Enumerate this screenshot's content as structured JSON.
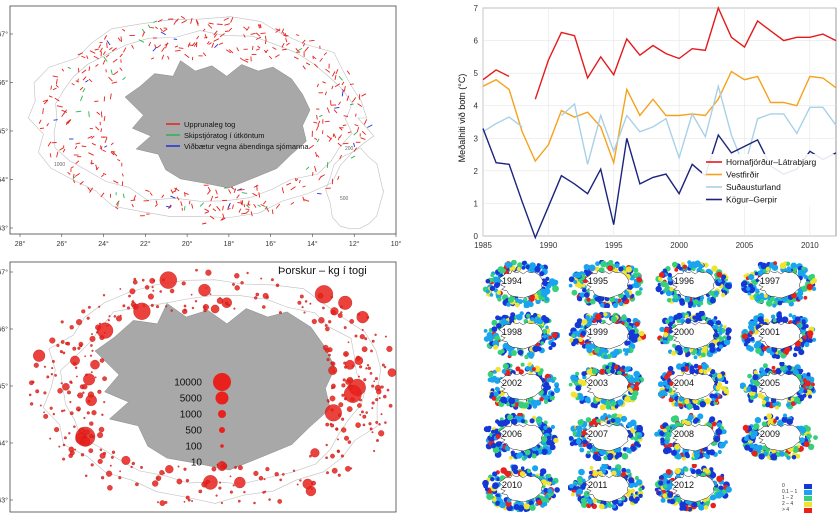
{
  "chart_data": [
    {
      "type": "map",
      "panel": "top-left",
      "x_ticks": [
        "28°",
        "26°",
        "24°",
        "22°",
        "20°",
        "18°",
        "16°",
        "14°",
        "12°",
        "10°"
      ],
      "y_ticks": [
        "67°",
        "66°",
        "65°",
        "64°",
        "63°"
      ],
      "legend": [
        {
          "label": "Upprunaleg tog",
          "color": "#e8211c"
        },
        {
          "label": "Skipstjóratog í útköntum",
          "color": "#2db34a"
        },
        {
          "label": "Viðbætur vegna ábendinga sjómanna",
          "color": "#1f2fd4"
        }
      ],
      "contour_labels": [
        "1000",
        "200",
        "500"
      ],
      "colors": {
        "land": "#a8a8a8",
        "contour": "#bfbfbf"
      }
    },
    {
      "type": "bubble-map",
      "panel": "bottom-left",
      "title": "Þorskur – kg í togi",
      "y_ticks": [
        "67°",
        "66°",
        "65°",
        "64°",
        "63°"
      ],
      "size_legend": [
        "10000",
        "5000",
        "1000",
        "500",
        "100",
        "10"
      ],
      "colors": {
        "bubble": "#e8211c",
        "land": "#a8a8a8"
      }
    },
    {
      "type": "line",
      "panel": "top-right",
      "ylabel": "Meðalhiti við botn (°C)",
      "xlim": [
        1985,
        2012
      ],
      "ylim": [
        0,
        7
      ],
      "x_ticks": [
        "1985",
        "1990",
        "1995",
        "2000",
        "2005",
        "2010"
      ],
      "y_ticks": [
        "0",
        "1",
        "2",
        "3",
        "4",
        "5",
        "6",
        "7"
      ],
      "x": [
        1985,
        1986,
        1987,
        1988,
        1989,
        1990,
        1991,
        1992,
        1993,
        1994,
        1995,
        1996,
        1997,
        1998,
        1999,
        2000,
        2001,
        2002,
        2003,
        2004,
        2005,
        2006,
        2007,
        2008,
        2009,
        2010,
        2011,
        2012
      ],
      "series": [
        {
          "name": "Hornafjörður–Látrabjarg",
          "color": "#e41a1c",
          "values": [
            4.8,
            5.1,
            4.9,
            null,
            4.2,
            5.4,
            6.25,
            6.15,
            4.85,
            5.5,
            4.95,
            6.05,
            5.55,
            5.85,
            5.6,
            5.45,
            5.75,
            5.7,
            7.0,
            6.1,
            5.8,
            6.6,
            6.3,
            6.0,
            6.1,
            6.1,
            6.2,
            6.0
          ]
        },
        {
          "name": "Vestfirðir",
          "color": "#f5a21b",
          "values": [
            4.6,
            4.8,
            4.5,
            3.2,
            2.3,
            2.8,
            3.85,
            3.65,
            3.8,
            3.35,
            2.25,
            4.5,
            3.7,
            4.2,
            3.7,
            3.7,
            3.75,
            3.7,
            4.2,
            5.05,
            4.8,
            4.9,
            4.1,
            4.1,
            4.0,
            4.9,
            4.85,
            4.55
          ]
        },
        {
          "name": "Suðausturland",
          "color": "#a8d1e8",
          "values": [
            3.2,
            3.45,
            3.65,
            3.35,
            null,
            null,
            3.7,
            4.05,
            2.2,
            3.7,
            2.6,
            3.7,
            3.2,
            3.35,
            3.6,
            2.4,
            3.75,
            3.05,
            4.6,
            3.1,
            2.1,
            3.6,
            3.75,
            3.75,
            3.15,
            3.95,
            3.95,
            3.4
          ]
        },
        {
          "name": "Kögur–Gerpir",
          "color": "#1a237e",
          "values": [
            3.3,
            2.25,
            2.2,
            1.05,
            -0.05,
            0.9,
            1.85,
            1.6,
            1.3,
            2.05,
            0.35,
            3.0,
            1.6,
            1.8,
            1.9,
            1.3,
            2.2,
            1.85,
            3.1,
            2.55,
            2.75,
            2.95,
            2.15,
            1.9,
            2.05,
            2.6,
            2.35,
            2.55
          ]
        }
      ]
    },
    {
      "type": "heatmap",
      "panel": "bottom-right",
      "years": [
        "1994",
        "1995",
        "1996",
        "1997",
        "1998",
        "1999",
        "2000",
        "2001",
        "2002",
        "2003",
        "2004",
        "2005",
        "2006",
        "2007",
        "2008",
        "2009",
        "2010",
        "2011",
        "2012"
      ],
      "legend": [
        "0",
        "0.1 – 1",
        "1 – 2",
        "2 – 4",
        "> 4"
      ],
      "legend_colors": [
        "#1537d6",
        "#19a4ee",
        "#36d07a",
        "#f2e32e",
        "#e8211c"
      ]
    }
  ]
}
